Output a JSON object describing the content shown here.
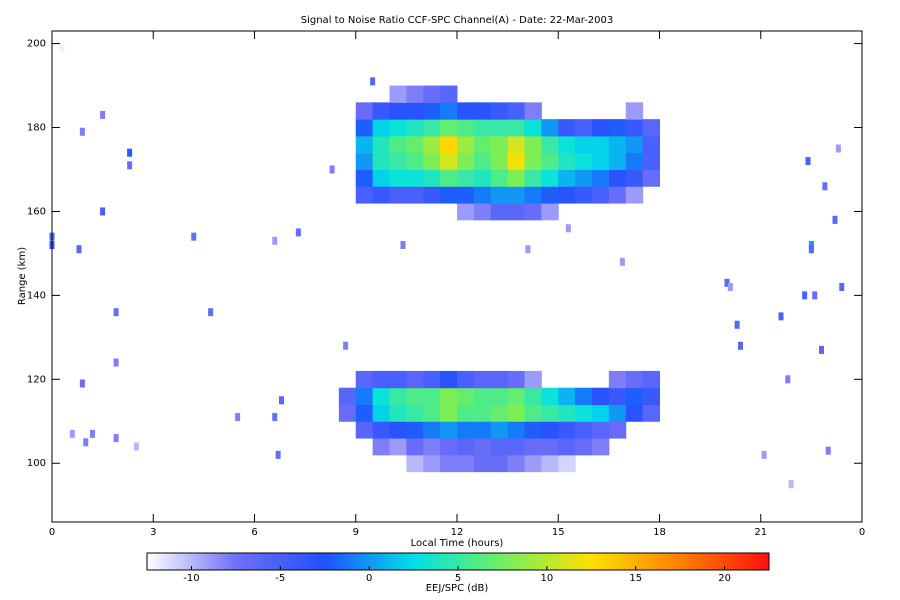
{
  "chart_data": {
    "type": "heatmap",
    "title": "Signal to Noise Ratio CCF-SPC Channel(A) - Date: 22-Mar-2003",
    "x_label": "Local Time (hours)",
    "y_label": "Range (km)",
    "xlim": [
      0,
      24
    ],
    "xticks": [
      0,
      3,
      6,
      9,
      12,
      15,
      18,
      21,
      {
        "value": 24,
        "label": "0"
      }
    ],
    "ylim": [
      86,
      203
    ],
    "yticks": [
      100,
      120,
      140,
      160,
      180,
      200
    ],
    "x_bins": [
      8.5,
      9,
      9.5,
      10,
      10.5,
      11,
      11.5,
      12,
      12.5,
      13,
      13.5,
      14,
      14.5,
      15,
      15.5,
      16,
      16.5,
      17,
      17.5,
      18
    ],
    "y_bins": [
      98,
      102,
      106,
      110,
      114,
      118,
      122,
      126,
      130,
      134,
      138,
      142,
      146,
      150,
      154,
      158,
      162,
      166,
      170,
      174,
      178,
      182,
      186,
      190
    ],
    "values": [
      [
        null,
        null,
        null,
        null,
        -10,
        -9,
        -8,
        -8,
        -7,
        -7,
        -8,
        -9,
        -10,
        -11,
        null,
        null,
        null,
        null,
        null
      ],
      [
        null,
        null,
        -8,
        -9,
        -7,
        -8,
        -7,
        -6,
        -7,
        -6,
        -6,
        -7,
        -7,
        -6,
        -7,
        -8,
        null,
        null,
        null
      ],
      [
        null,
        -6,
        -4,
        -3,
        -2,
        -1,
        0,
        -1,
        -1,
        0,
        -1,
        -2,
        -3,
        -4,
        -5,
        -6,
        -7,
        null,
        null
      ],
      [
        -7,
        -2,
        2,
        4,
        5,
        6,
        8,
        6,
        6,
        7,
        8,
        6,
        5,
        4,
        3,
        2,
        0,
        -3,
        -6
      ],
      [
        -6,
        -1,
        3,
        5,
        6,
        6,
        8,
        7,
        6,
        6,
        7,
        5,
        3,
        1,
        -1,
        -3,
        -4,
        -2,
        -4
      ],
      [
        null,
        -6,
        -5,
        -5,
        -6,
        -5,
        -3,
        -5,
        -6,
        -6,
        -7,
        -9,
        null,
        null,
        null,
        null,
        -8,
        -7,
        -6
      ],
      [
        null,
        null,
        null,
        null,
        null,
        null,
        null,
        null,
        null,
        null,
        null,
        null,
        null,
        null,
        null,
        null,
        null,
        null,
        null
      ],
      [
        null,
        null,
        null,
        null,
        null,
        null,
        null,
        null,
        null,
        null,
        null,
        null,
        null,
        null,
        null,
        null,
        null,
        null,
        null
      ],
      [
        null,
        null,
        null,
        null,
        null,
        null,
        null,
        null,
        null,
        null,
        null,
        null,
        null,
        null,
        null,
        null,
        null,
        null,
        null
      ],
      [
        null,
        null,
        null,
        null,
        null,
        null,
        null,
        null,
        null,
        null,
        null,
        null,
        null,
        null,
        null,
        null,
        null,
        null,
        null
      ],
      [
        null,
        null,
        null,
        null,
        null,
        null,
        null,
        null,
        null,
        null,
        null,
        null,
        null,
        null,
        null,
        null,
        null,
        null,
        null
      ],
      [
        null,
        null,
        null,
        null,
        null,
        null,
        null,
        null,
        null,
        null,
        null,
        null,
        null,
        null,
        null,
        null,
        null,
        null,
        null
      ],
      [
        null,
        null,
        null,
        null,
        null,
        null,
        null,
        null,
        null,
        null,
        null,
        null,
        null,
        null,
        null,
        null,
        null,
        null,
        null
      ],
      [
        null,
        null,
        null,
        null,
        null,
        null,
        null,
        null,
        null,
        null,
        null,
        null,
        null,
        null,
        null,
        null,
        null,
        null,
        null
      ],
      [
        null,
        null,
        null,
        null,
        null,
        null,
        null,
        null,
        null,
        null,
        null,
        null,
        null,
        null,
        null,
        null,
        null,
        null,
        null
      ],
      [
        null,
        null,
        null,
        null,
        null,
        null,
        null,
        -9,
        -8,
        -6,
        -6,
        -7,
        -9,
        null,
        null,
        null,
        null,
        null,
        null
      ],
      [
        null,
        -5,
        -4,
        -5,
        -5,
        -4,
        -2,
        -2,
        -1,
        0,
        0,
        -1,
        -2,
        -3,
        -4,
        -5,
        -7,
        -9,
        null
      ],
      [
        null,
        -2,
        2,
        3,
        3,
        4,
        6,
        5,
        4,
        6,
        8,
        5,
        3,
        1,
        0,
        -1,
        -3,
        -4,
        -7
      ],
      [
        null,
        0,
        4,
        5,
        6,
        8,
        11,
        8,
        6,
        8,
        12,
        8,
        6,
        4,
        3,
        2,
        1,
        -1,
        -5
      ],
      [
        null,
        1,
        4,
        6,
        7,
        9,
        13,
        9,
        7,
        8,
        11,
        8,
        5,
        3,
        2,
        2,
        1,
        0,
        -5
      ],
      [
        null,
        -2,
        2,
        3,
        4,
        5,
        7,
        6,
        5,
        5,
        5,
        3,
        0,
        -4,
        -5,
        -3,
        -2,
        -4,
        -6
      ],
      [
        null,
        -7,
        -4,
        -3,
        -3,
        -2,
        -1,
        -3,
        -3,
        -4,
        -5,
        -8,
        null,
        null,
        null,
        null,
        null,
        -9,
        null
      ],
      [
        null,
        null,
        null,
        -9,
        -8,
        -7,
        -6,
        null,
        null,
        null,
        null,
        null,
        null,
        null,
        null,
        null,
        null,
        null,
        null
      ]
    ],
    "points": {
      "x": [
        0.3,
        0,
        0,
        0.9,
        0.8,
        0.9,
        1.5,
        1.5,
        2.3,
        2.3,
        1.9,
        1.9,
        0.6,
        1.0,
        1.2,
        1.9,
        2.5,
        4.7,
        4.2,
        5.5,
        6.6,
        6.6,
        6.8,
        6.7,
        7.3,
        8.3,
        8.7,
        9.5,
        10.4,
        14.1,
        15.3,
        16.9,
        20,
        20.1,
        20.3,
        20.4,
        21.1,
        21.6,
        22.4,
        22.5,
        22.5,
        22.3,
        22.6,
        22.9,
        22.8,
        23.4,
        23.2,
        23.0,
        21.8,
        21.9,
        23.3
      ],
      "y": [
        199,
        154,
        152,
        179,
        151,
        119,
        160,
        183,
        174,
        171,
        136,
        124,
        107,
        105,
        107,
        106,
        104,
        136,
        154,
        111,
        111,
        153,
        115,
        102,
        155,
        170,
        128,
        191,
        152,
        151,
        156,
        148,
        143,
        142,
        133,
        128,
        102,
        135,
        172,
        152,
        151,
        140,
        140,
        166,
        127,
        142,
        158,
        103,
        120,
        95,
        175
      ],
      "values": [
        -12,
        -6,
        -4,
        -8,
        -6,
        -7,
        -5,
        -8,
        -2,
        -7,
        -7,
        -8,
        -9,
        -8,
        -8,
        -8,
        -10,
        -7,
        -7,
        -8,
        -7,
        -9,
        -6,
        -7,
        -7,
        -8,
        -8,
        -6,
        -8,
        -9,
        -9,
        -9,
        -6,
        -9,
        -6,
        -6,
        -9,
        -5,
        -5,
        0,
        -6,
        -5,
        -7,
        -7,
        -6,
        -6,
        -6,
        -8,
        -8,
        -10,
        -9
      ]
    },
    "colorbar_label": "EEJ/SPC (dB)",
    "clim": [
      -12.5,
      22.5
    ],
    "cticks": [
      -10,
      -5,
      0,
      5,
      10,
      15,
      20
    ],
    "colormap": [
      "#ffffff",
      "#7070f8",
      "#2050ff",
      "#00e0e8",
      "#70f060",
      "#ffe000",
      "#ff8000",
      "#ff1010"
    ]
  }
}
